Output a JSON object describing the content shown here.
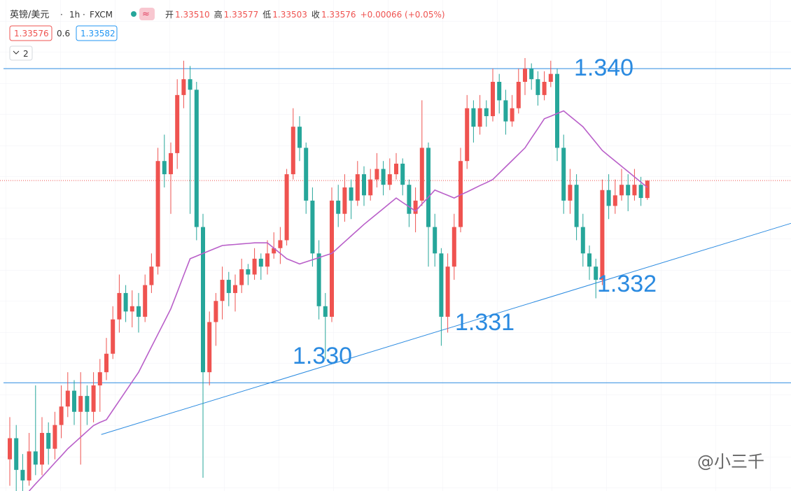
{
  "header": {
    "symbol": "英镑/美元",
    "interval": "1h",
    "source": "FXCM",
    "ohlc": [
      {
        "name": "开",
        "text": "1.33510"
      },
      {
        "name": "高",
        "text": "1.33577"
      },
      {
        "name": "低",
        "text": "1.33503"
      },
      {
        "name": "收",
        "text": "1.33576"
      }
    ],
    "change": "+0.00066 (+0.05%)",
    "bid": "1.33576",
    "spread": "0.6",
    "ask": "1.33582",
    "collapsed_count": "2"
  },
  "watermark": "@小三千",
  "chart_data": {
    "type": "candlestick",
    "up_color": "#ef5350",
    "down_color": "#26a69a",
    "ylim": [
      1.324,
      1.3426
    ],
    "candles": [
      [
        1.3252,
        1.3268,
        1.3242,
        1.326
      ],
      [
        1.326,
        1.3265,
        1.324,
        1.3248
      ],
      [
        1.3248,
        1.3254,
        1.324,
        1.3244
      ],
      [
        1.3244,
        1.3262,
        1.3242,
        1.3255
      ],
      [
        1.3255,
        1.328,
        1.3246,
        1.325
      ],
      [
        1.325,
        1.3268,
        1.3246,
        1.3262
      ],
      [
        1.3262,
        1.3266,
        1.325,
        1.3256
      ],
      [
        1.3256,
        1.327,
        1.3252,
        1.3265
      ],
      [
        1.3265,
        1.328,
        1.326,
        1.3272
      ],
      [
        1.3272,
        1.3285,
        1.3268,
        1.3278
      ],
      [
        1.3278,
        1.3282,
        1.3265,
        1.327
      ],
      [
        1.327,
        1.3285,
        1.325,
        1.3276
      ],
      [
        1.3276,
        1.328,
        1.3265,
        1.327
      ],
      [
        1.327,
        1.3285,
        1.3266,
        1.328
      ],
      [
        1.328,
        1.329,
        1.327,
        1.3285
      ],
      [
        1.3285,
        1.3298,
        1.3282,
        1.3292
      ],
      [
        1.3292,
        1.331,
        1.329,
        1.3305
      ],
      [
        1.3305,
        1.3322,
        1.33,
        1.3315
      ],
      [
        1.3315,
        1.3318,
        1.3304,
        1.3308
      ],
      [
        1.3308,
        1.3316,
        1.3302,
        1.331
      ],
      [
        1.331,
        1.3315,
        1.33,
        1.3306
      ],
      [
        1.3306,
        1.3322,
        1.3304,
        1.3318
      ],
      [
        1.3318,
        1.333,
        1.3315,
        1.3325
      ],
      [
        1.3325,
        1.337,
        1.3322,
        1.3365
      ],
      [
        1.3365,
        1.3375,
        1.3355,
        1.336
      ],
      [
        1.336,
        1.3372,
        1.3345,
        1.3368
      ],
      [
        1.3368,
        1.3396,
        1.3362,
        1.339
      ],
      [
        1.339,
        1.3403,
        1.3385,
        1.3396
      ],
      [
        1.3396,
        1.3401,
        1.3345,
        1.3392
      ],
      [
        1.3392,
        1.3395,
        1.3335,
        1.334
      ],
      [
        1.334,
        1.3345,
        1.3245,
        1.3285
      ],
      [
        1.3285,
        1.3308,
        1.328,
        1.3304
      ],
      [
        1.3304,
        1.3315,
        1.3295,
        1.3312
      ],
      [
        1.3312,
        1.3325,
        1.3305,
        1.332
      ],
      [
        1.332,
        1.3323,
        1.331,
        1.3315
      ],
      [
        1.3315,
        1.3322,
        1.3308,
        1.3318
      ],
      [
        1.3318,
        1.3328,
        1.3315,
        1.3324
      ],
      [
        1.3324,
        1.3326,
        1.3318,
        1.3322
      ],
      [
        1.3322,
        1.3332,
        1.332,
        1.3328
      ],
      [
        1.3328,
        1.333,
        1.332,
        1.3325
      ],
      [
        1.3325,
        1.3335,
        1.3322,
        1.333
      ],
      [
        1.333,
        1.3338,
        1.3328,
        1.3332
      ],
      [
        1.3332,
        1.334,
        1.3326,
        1.3335
      ],
      [
        1.3335,
        1.3362,
        1.3333,
        1.336
      ],
      [
        1.336,
        1.3385,
        1.3358,
        1.3378
      ],
      [
        1.3378,
        1.3382,
        1.3365,
        1.337
      ],
      [
        1.337,
        1.3372,
        1.3345,
        1.335
      ],
      [
        1.335,
        1.3355,
        1.3325,
        1.333
      ],
      [
        1.333,
        1.3335,
        1.3305,
        1.331
      ],
      [
        1.331,
        1.3315,
        1.329,
        1.3306
      ],
      [
        1.3306,
        1.3355,
        1.3304,
        1.335
      ],
      [
        1.335,
        1.3356,
        1.334,
        1.3345
      ],
      [
        1.3345,
        1.336,
        1.3342,
        1.3355
      ],
      [
        1.3355,
        1.3358,
        1.3343,
        1.335
      ],
      [
        1.335,
        1.3365,
        1.3348,
        1.336
      ],
      [
        1.336,
        1.3363,
        1.3348,
        1.3352
      ],
      [
        1.3352,
        1.3362,
        1.335,
        1.3358
      ],
      [
        1.3358,
        1.3368,
        1.3355,
        1.3362
      ],
      [
        1.3362,
        1.3365,
        1.3352,
        1.3356
      ],
      [
        1.3356,
        1.3366,
        1.3354,
        1.336
      ],
      [
        1.336,
        1.3368,
        1.3358,
        1.3364
      ],
      [
        1.3364,
        1.3366,
        1.3352,
        1.3356
      ],
      [
        1.3356,
        1.3358,
        1.334,
        1.3345
      ],
      [
        1.3345,
        1.3355,
        1.3338,
        1.335
      ],
      [
        1.335,
        1.3388,
        1.3348,
        1.337
      ],
      [
        1.337,
        1.3372,
        1.3325,
        1.334
      ],
      [
        1.334,
        1.3345,
        1.3325,
        1.333
      ],
      [
        1.333,
        1.3332,
        1.3295,
        1.3306
      ],
      [
        1.3306,
        1.333,
        1.33,
        1.3325
      ],
      [
        1.3325,
        1.3345,
        1.332,
        1.334
      ],
      [
        1.334,
        1.337,
        1.3338,
        1.3365
      ],
      [
        1.3365,
        1.339,
        1.3362,
        1.3385
      ],
      [
        1.3385,
        1.3388,
        1.3372,
        1.3378
      ],
      [
        1.3378,
        1.339,
        1.3375,
        1.3385
      ],
      [
        1.3385,
        1.3388,
        1.3378,
        1.3382
      ],
      [
        1.3382,
        1.34,
        1.338,
        1.3395
      ],
      [
        1.3395,
        1.3398,
        1.3383,
        1.3388
      ],
      [
        1.3388,
        1.3392,
        1.3375,
        1.338
      ],
      [
        1.338,
        1.339,
        1.3378,
        1.3385
      ],
      [
        1.3385,
        1.34,
        1.3383,
        1.3395
      ],
      [
        1.3395,
        1.3404,
        1.339,
        1.34
      ],
      [
        1.34,
        1.3402,
        1.3392,
        1.3396
      ],
      [
        1.3396,
        1.3399,
        1.3386,
        1.339
      ],
      [
        1.339,
        1.3399,
        1.3388,
        1.3395
      ],
      [
        1.3395,
        1.3403,
        1.3393,
        1.3398
      ],
      [
        1.3398,
        1.34,
        1.3365,
        1.337
      ],
      [
        1.337,
        1.3375,
        1.3345,
        1.335
      ],
      [
        1.335,
        1.3362,
        1.3345,
        1.3356
      ],
      [
        1.3356,
        1.336,
        1.3335,
        1.334
      ],
      [
        1.334,
        1.3345,
        1.3325,
        1.333
      ],
      [
        1.333,
        1.3333,
        1.332,
        1.3325
      ],
      [
        1.3325,
        1.3328,
        1.3313,
        1.332
      ],
      [
        1.332,
        1.3358,
        1.3318,
        1.3354
      ],
      [
        1.3354,
        1.336,
        1.3343,
        1.3348
      ],
      [
        1.3348,
        1.3358,
        1.3345,
        1.3352
      ],
      [
        1.3352,
        1.3362,
        1.335,
        1.3356
      ],
      [
        1.3356,
        1.336,
        1.3346,
        1.3352
      ],
      [
        1.3352,
        1.3362,
        1.335,
        1.3356
      ],
      [
        1.3356,
        1.3359,
        1.3348,
        1.3351
      ],
      [
        1.3351,
        1.33577,
        1.33503,
        1.33576
      ]
    ],
    "ma": {
      "color": "#b95fc9",
      "values": [
        null,
        null,
        null,
        1.324,
        1.32427,
        1.32453,
        1.3248,
        1.32507,
        1.32533,
        1.3256,
        1.32582,
        1.32604,
        1.32626,
        1.32648,
        1.3266,
        1.3267,
        1.32706,
        1.32742,
        1.32778,
        1.32814,
        1.3285,
        1.32898,
        1.32946,
        1.32994,
        1.33042,
        1.3309,
        1.33153,
        1.33217,
        1.3328,
        1.3329,
        1.333,
        1.3331,
        1.3332,
        1.3333,
        1.33332,
        1.33334,
        1.33336,
        1.33338,
        1.3334,
        1.3334,
        1.3334,
        1.3332,
        1.333,
        1.3328,
        1.3327,
        1.3326,
        1.33268,
        1.33276,
        1.33284,
        1.33292,
        1.333,
        1.33322,
        1.33344,
        1.33366,
        1.33388,
        1.3341,
        1.3343,
        1.3345,
        1.3347,
        1.3349,
        1.3351,
        1.33493,
        1.33477,
        1.3346,
        1.33487,
        1.33513,
        1.3354,
        1.3353,
        1.3352,
        1.3351,
        1.33522,
        1.33533,
        1.33545,
        1.33557,
        1.33568,
        1.3358,
        1.33604,
        1.33628,
        1.33652,
        1.33676,
        1.337,
        1.33737,
        1.33773,
        1.3381,
        1.3382,
        1.3383,
        1.3384,
        1.3382,
        1.338,
        1.3378,
        1.3375,
        1.3372,
        1.3369,
        1.3367,
        1.3365,
        1.3363,
        1.3361,
        1.3359,
        1.3357,
        1.3355
      ]
    },
    "levels": [
      1.34,
      1.3281
    ],
    "trend_line": {
      "from": [
        14.2,
        1.32614
      ],
      "to": [
        121.3,
        1.33414
      ]
    },
    "annotations": [
      "1.340",
      "1.332",
      "1.331",
      "1.330"
    ]
  }
}
